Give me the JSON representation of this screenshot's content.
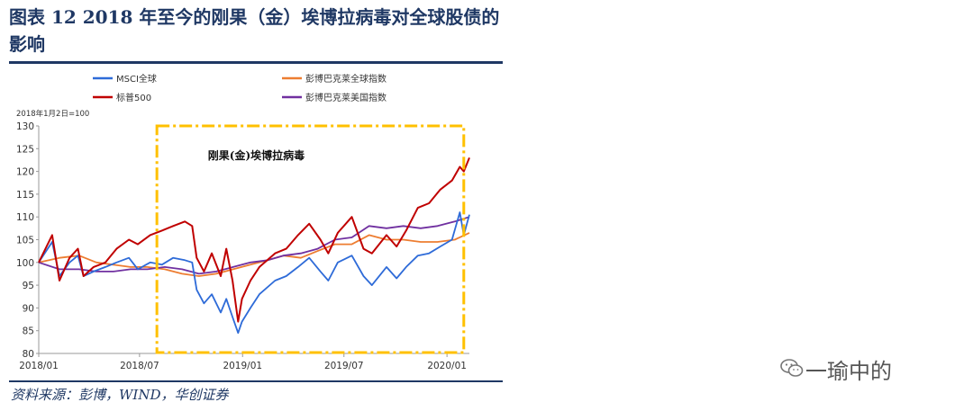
{
  "figure": {
    "title": "图表 12    2018 年至今的刚果（金）埃博拉病毒对全球股债的影响",
    "source": "资料来源：彭博，WIND，华创证券"
  },
  "watermark": {
    "text": "一瑜中的",
    "icon": "wechat-icon"
  },
  "chart_data": {
    "type": "line",
    "unit_label": "2018年1月2日=100",
    "ylim": [
      80,
      130
    ],
    "y_ticks": [
      "130",
      "125",
      "120",
      "115",
      "110",
      "105",
      "100",
      "95",
      "90",
      "85",
      "80"
    ],
    "x_ticks": [
      "2018/01",
      "2018/07",
      "2019/01",
      "2019/07",
      "2020/01"
    ],
    "x_range": [
      "2018-01-02",
      "2020-02-10"
    ],
    "annotation": {
      "text": "刚果(金)埃博拉病毒",
      "period": [
        "2018-08-01",
        "2020-01-31"
      ],
      "color": "#ffc000"
    },
    "legend": [
      "MSCI全球",
      "彭博巴克莱全球指数",
      "标普500",
      "彭博巴克莱美国指数"
    ],
    "series": [
      {
        "name": "MSCI全球",
        "color": "#2e6bd8",
        "x": [
          "2018-01-02",
          "2018-01-26",
          "2018-02-08",
          "2018-02-26",
          "2018-03-13",
          "2018-03-23",
          "2018-04-10",
          "2018-05-01",
          "2018-05-21",
          "2018-06-12",
          "2018-06-28",
          "2018-07-20",
          "2018-08-10",
          "2018-08-30",
          "2018-09-20",
          "2018-10-03",
          "2018-10-11",
          "2018-10-24",
          "2018-11-07",
          "2018-11-23",
          "2018-12-03",
          "2018-12-14",
          "2018-12-24",
          "2018-12-31",
          "2019-01-15",
          "2019-01-31",
          "2019-02-28",
          "2019-03-20",
          "2019-04-10",
          "2019-04-30",
          "2019-05-20",
          "2019-06-03",
          "2019-06-20",
          "2019-07-15",
          "2019-08-05",
          "2019-08-20",
          "2019-09-15",
          "2019-10-03",
          "2019-10-20",
          "2019-11-10",
          "2019-11-30",
          "2019-12-20",
          "2020-01-10",
          "2020-01-24",
          "2020-01-31",
          "2020-02-10"
        ],
        "y": [
          100,
          104.5,
          97,
          100,
          101.5,
          97,
          98,
          99,
          100,
          101,
          98.5,
          100,
          99.5,
          101,
          100.5,
          100,
          94,
          91,
          93,
          89,
          92,
          88,
          84.5,
          87,
          90,
          93,
          96,
          97,
          99,
          101,
          98,
          96,
          100,
          101.5,
          97,
          95,
          99,
          96.5,
          99,
          101.5,
          102,
          103.5,
          105,
          111,
          106,
          110.5
        ]
      },
      {
        "name": "彭博巴克莱全球指数",
        "color": "#ed7d31",
        "x": [
          "2018-01-02",
          "2018-02-08",
          "2018-03-15",
          "2018-04-15",
          "2018-05-15",
          "2018-06-15",
          "2018-07-15",
          "2018-08-15",
          "2018-09-15",
          "2018-10-15",
          "2018-11-15",
          "2018-12-15",
          "2019-01-15",
          "2019-02-15",
          "2019-03-15",
          "2019-04-15",
          "2019-05-15",
          "2019-06-15",
          "2019-07-15",
          "2019-08-15",
          "2019-09-15",
          "2019-10-15",
          "2019-11-15",
          "2019-12-15",
          "2020-01-15",
          "2020-02-10"
        ],
        "y": [
          100,
          101,
          101.5,
          100,
          99.5,
          99,
          99,
          98.5,
          97.5,
          97,
          97.5,
          98.5,
          99.5,
          100.5,
          101.5,
          101,
          102.5,
          104,
          104,
          106,
          105,
          105,
          104.5,
          104.5,
          105,
          106.5
        ]
      },
      {
        "name": "标普500",
        "color": "#c00000",
        "x": [
          "2018-01-02",
          "2018-01-26",
          "2018-02-08",
          "2018-02-26",
          "2018-03-13",
          "2018-03-23",
          "2018-04-10",
          "2018-05-01",
          "2018-05-21",
          "2018-06-12",
          "2018-06-28",
          "2018-07-20",
          "2018-08-10",
          "2018-08-30",
          "2018-09-20",
          "2018-10-03",
          "2018-10-11",
          "2018-10-24",
          "2018-11-07",
          "2018-11-23",
          "2018-12-03",
          "2018-12-14",
          "2018-12-24",
          "2018-12-31",
          "2019-01-15",
          "2019-01-31",
          "2019-02-28",
          "2019-03-20",
          "2019-04-10",
          "2019-04-30",
          "2019-05-20",
          "2019-06-03",
          "2019-06-20",
          "2019-07-15",
          "2019-08-05",
          "2019-08-20",
          "2019-09-15",
          "2019-10-03",
          "2019-10-20",
          "2019-11-10",
          "2019-11-30",
          "2019-12-20",
          "2020-01-10",
          "2020-01-24",
          "2020-01-31",
          "2020-02-10"
        ],
        "y": [
          100,
          106,
          96,
          101,
          103,
          97,
          99,
          100,
          103,
          105,
          104,
          106,
          107,
          108,
          109,
          108,
          101,
          98,
          102,
          97,
          103,
          96,
          87,
          92,
          96,
          99,
          102,
          103,
          106,
          108.5,
          105,
          102,
          106.5,
          110,
          103,
          102,
          106,
          103.5,
          107,
          112,
          113,
          116,
          118,
          121,
          120,
          123
        ]
      },
      {
        "name": "彭博巴克莱美国指数",
        "color": "#7030a0",
        "x": [
          "2018-01-02",
          "2018-02-08",
          "2018-03-15",
          "2018-04-15",
          "2018-05-15",
          "2018-06-15",
          "2018-07-15",
          "2018-08-15",
          "2018-09-15",
          "2018-10-15",
          "2018-11-15",
          "2018-12-15",
          "2019-01-15",
          "2019-02-15",
          "2019-03-15",
          "2019-04-15",
          "2019-05-15",
          "2019-06-15",
          "2019-07-15",
          "2019-08-15",
          "2019-09-15",
          "2019-10-15",
          "2019-11-15",
          "2019-12-15",
          "2020-01-15",
          "2020-02-10"
        ],
        "y": [
          100,
          98.5,
          98.5,
          98,
          98,
          98.5,
          98.5,
          99,
          98.5,
          97.5,
          98,
          99,
          100,
          100.5,
          101.5,
          102,
          103,
          105,
          105.5,
          108,
          107.5,
          108,
          107.5,
          108,
          109,
          110
        ]
      }
    ]
  }
}
